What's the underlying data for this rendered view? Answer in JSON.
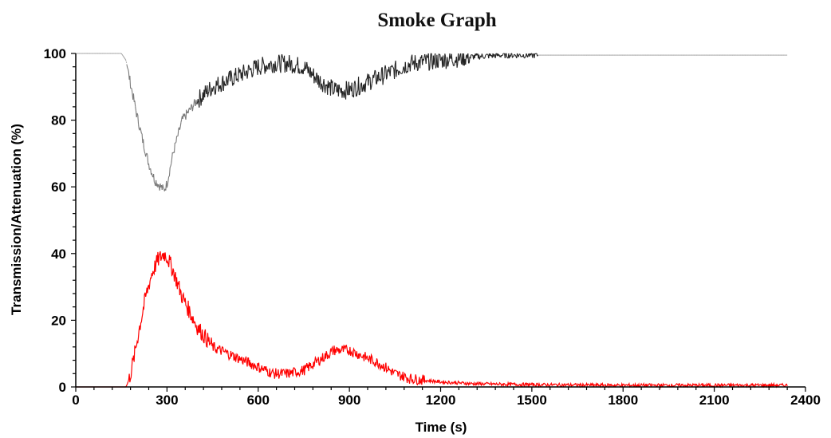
{
  "chart_data": {
    "type": "line",
    "title": "Smoke Graph",
    "xlabel": "Time (s)",
    "ylabel": "Transmission/Attenuation (%)",
    "xlim": [
      0,
      2400
    ],
    "ylim": [
      0,
      100
    ],
    "x_ticks": [
      0,
      300,
      600,
      900,
      1200,
      1500,
      1800,
      2100,
      2400
    ],
    "x_tick_labels": [
      "0",
      "300",
      "600",
      "900",
      "1200",
      "1500",
      "1800",
      "2100",
      "2400"
    ],
    "y_ticks": [
      0,
      20,
      40,
      60,
      80,
      100
    ],
    "y_tick_labels": [
      "0",
      "20",
      "40",
      "60",
      "80",
      "100"
    ],
    "grid": false,
    "legend": "none",
    "series": [
      {
        "color": "#222222",
        "style": "noisy-light-ends",
        "x": [
          0,
          150,
          165,
          180,
          200,
          220,
          240,
          260,
          280,
          290,
          300,
          320,
          350,
          400,
          450,
          500,
          550,
          600,
          650,
          700,
          750,
          800,
          850,
          900,
          950,
          1000,
          1050,
          1100,
          1200,
          1300,
          1400,
          1500,
          1550,
          1600,
          1800,
          2000,
          2200,
          2340
        ],
        "y": [
          100,
          100,
          98,
          91,
          82,
          74,
          67,
          62,
          60,
          59,
          61,
          70,
          80,
          86,
          90,
          92,
          94,
          96,
          97,
          97,
          96,
          92,
          89,
          89,
          91,
          93,
          95,
          97,
          98,
          99,
          99.5,
          99.5,
          99.5,
          99.5,
          99.5,
          99.5,
          99.5,
          99.5
        ]
      },
      {
        "color": "#ff0000",
        "style": "noisy",
        "x": [
          0,
          165,
          175,
          190,
          210,
          230,
          250,
          270,
          290,
          300,
          320,
          350,
          400,
          450,
          500,
          550,
          600,
          650,
          700,
          750,
          800,
          850,
          900,
          950,
          1000,
          1050,
          1100,
          1200,
          1300,
          1400,
          1500,
          1600,
          1800,
          2000,
          2200,
          2340
        ],
        "y": [
          0,
          0,
          2,
          8,
          18,
          27,
          34,
          38,
          40,
          39,
          35,
          27,
          18,
          12,
          10,
          8,
          6,
          4,
          4,
          5,
          8,
          11,
          11,
          9,
          7,
          4,
          2.5,
          1.5,
          1,
          0.8,
          0.7,
          0.6,
          0.5,
          0.5,
          0.5,
          0.5
        ]
      }
    ]
  }
}
